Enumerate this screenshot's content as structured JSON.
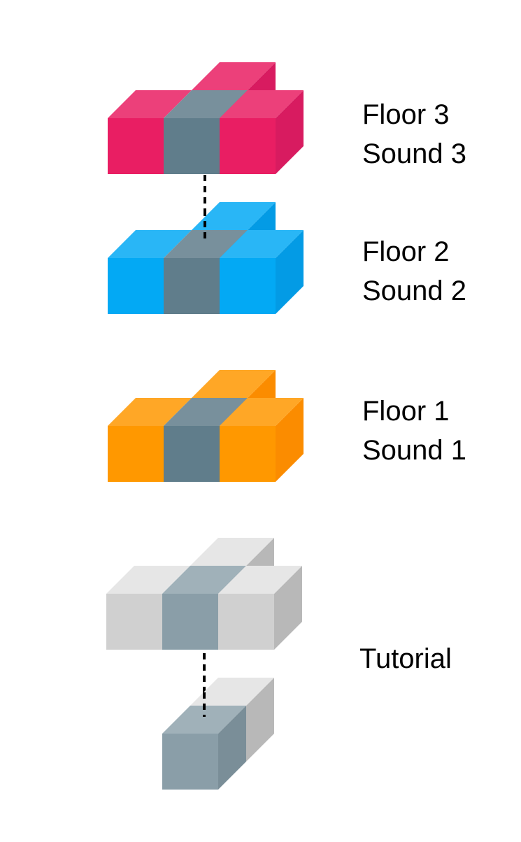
{
  "levels": [
    {
      "id": "floor3",
      "title": "Floor 3",
      "subtitle": "Sound 3",
      "palette": "pink"
    },
    {
      "id": "floor2",
      "title": "Floor 2",
      "subtitle": "Sound 2",
      "palette": "blue"
    },
    {
      "id": "floor1",
      "title": "Floor 1",
      "subtitle": "Sound 1",
      "palette": "orange"
    },
    {
      "id": "tutorial",
      "title": "Tutorial",
      "palette": "gray"
    }
  ],
  "palettes": {
    "pink": {
      "front": "#E91E63",
      "top": "#EC407A",
      "side": "#D81B60"
    },
    "blue": {
      "front": "#03A9F4",
      "top": "#29B6F6",
      "side": "#039BE5"
    },
    "orange": {
      "front": "#FF9800",
      "top": "#FFA726",
      "side": "#FB8C00"
    },
    "gray": {
      "front": "#D0D0D0",
      "top": "#E6E6E6",
      "side": "#B8B8B8"
    },
    "slate": {
      "front": "#607D8B",
      "top": "#78909C",
      "side": "#546E7A"
    },
    "slateLight": {
      "front": "#8A9EA8",
      "top": "#A0B1B9",
      "side": "#7A8E98"
    }
  },
  "connector_color": "#000000"
}
